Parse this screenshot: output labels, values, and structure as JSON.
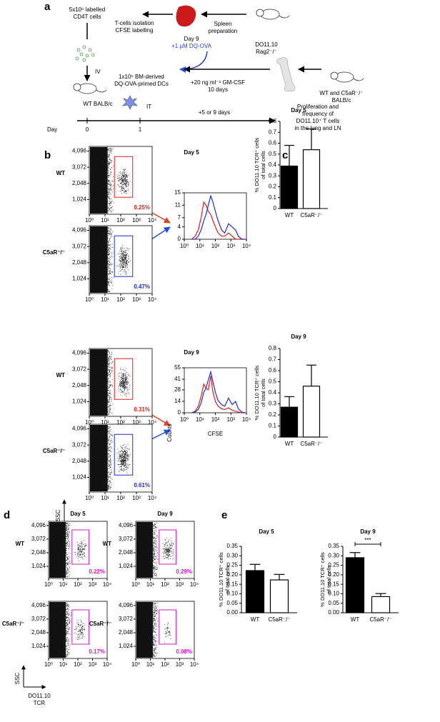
{
  "panels": {
    "a": "a",
    "b": "b",
    "c": "c",
    "d": "d",
    "e": "e"
  },
  "diagram": {
    "cells": [
      "5x10⁶ labelled",
      "CD4T cells"
    ],
    "isolation": [
      "T-cells isolation",
      "CFSE labelling"
    ],
    "spleen": [
      "Spleen",
      "preparation"
    ],
    "donor": [
      "DO11.10",
      "Rag2⁻/⁻"
    ],
    "dq": [
      "Day 9",
      "+1 µM DQ-OVA"
    ],
    "iv": "IV",
    "dcs": [
      "1x10⁶ BM-derived",
      "DQ-OVA-primed DCs"
    ],
    "gmcsf": [
      "+20 ng ml⁻¹ GM-CSF",
      "10 days"
    ],
    "bm_donor": [
      "WT and C5aR⁻/⁻",
      "BALB/c"
    ],
    "recipient": "WT BALB/c",
    "it": "IT",
    "wait": "+5 or 9 days",
    "readout": [
      "Proliferation and",
      "frequency of",
      "DO11.10⁺ T cells",
      "in the lung and LN"
    ],
    "timeline": {
      "label": "Day",
      "days": [
        "0",
        "1"
      ]
    }
  },
  "flow": {
    "b": {
      "days": [
        "Day 5",
        "Day 9"
      ],
      "rows": [
        "WT",
        "C5aR⁻/⁻"
      ],
      "gates": [
        [
          "0.25%",
          "0.47%"
        ],
        [
          "0.31%",
          "0.61%"
        ]
      ]
    },
    "d": {
      "days": [
        "Day 5",
        "Day 9"
      ],
      "rows": [
        "WT",
        "C5aR⁻/⁻"
      ],
      "gates": [
        [
          "0.22%",
          "0.17%"
        ],
        [
          "0.29%",
          "0.08%"
        ]
      ]
    },
    "yticks": [
      "1,024",
      "2,048",
      "3,072",
      "4,096"
    ],
    "xticks": [
      "10⁰",
      "10¹",
      "10²",
      "10³",
      "10⁴"
    ],
    "ylabel": "SSC",
    "xlabel": [
      "DO11.10",
      "TCR"
    ]
  },
  "chart_data": [
    {
      "type": "line",
      "x": [
        3,
        5,
        8,
        12,
        18,
        25,
        35,
        50,
        70,
        100,
        150,
        250,
        400,
        700,
        1200,
        2000,
        3000,
        5000,
        8000
      ],
      "xlog": true,
      "xlim": [
        1,
        10000
      ],
      "xticks": [
        {
          "value": 1,
          "label": "10⁰"
        },
        {
          "value": 10,
          "label": "10¹"
        },
        {
          "value": 100,
          "label": "10²"
        },
        {
          "value": 1000,
          "label": "10³"
        },
        {
          "value": 10000,
          "label": "10⁴"
        }
      ],
      "ylim": [
        0,
        15
      ],
      "yticks": [
        0,
        4,
        7,
        11,
        15
      ],
      "series": [
        {
          "color": "#e0201b",
          "values": [
            0,
            1,
            3,
            7,
            12,
            11,
            9,
            8,
            6,
            4,
            2,
            1,
            1,
            2,
            1,
            0,
            0,
            0,
            0
          ]
        },
        {
          "color": "#1f2fcf",
          "values": [
            0,
            0,
            1,
            3,
            6,
            8,
            11,
            14,
            12,
            9,
            6,
            3,
            2,
            5,
            4,
            3,
            1,
            0,
            0
          ]
        }
      ]
    },
    {
      "type": "line",
      "x": [
        3,
        5,
        8,
        12,
        18,
        25,
        35,
        50,
        70,
        100,
        150,
        250,
        400,
        700,
        1200,
        2000,
        3000,
        5000,
        8000
      ],
      "xlog": true,
      "xlim": [
        1,
        10000
      ],
      "xticks": [
        {
          "value": 1,
          "label": "10⁰"
        },
        {
          "value": 10,
          "label": "10¹"
        },
        {
          "value": 100,
          "label": "10²"
        },
        {
          "value": 1000,
          "label": "10³"
        },
        {
          "value": 10000,
          "label": "10⁴"
        }
      ],
      "ylim": [
        0,
        55
      ],
      "yticks": [
        0,
        14,
        28,
        41,
        55
      ],
      "xlabel": "CFSE",
      "ylabel": "Counts",
      "series": [
        {
          "color": "#e0201b",
          "values": [
            0,
            2,
            8,
            20,
            35,
            30,
            28,
            45,
            25,
            14,
            8,
            5,
            4,
            6,
            3,
            2,
            1,
            0,
            0
          ]
        },
        {
          "color": "#1f2fcf",
          "values": [
            0,
            1,
            4,
            12,
            25,
            30,
            40,
            50,
            38,
            25,
            15,
            10,
            8,
            18,
            10,
            14,
            5,
            1,
            0
          ]
        }
      ]
    },
    {
      "type": "bar",
      "title": "Day 5",
      "categories": [
        "WT",
        "C5aR⁻/⁻"
      ],
      "values": [
        0.39,
        0.54
      ],
      "errors": [
        0.19,
        0.19
      ],
      "colors": [
        "#000000",
        "#ffffff"
      ],
      "ylim": [
        0,
        0.8
      ],
      "yticks": [
        0,
        0.1,
        0.2,
        0.3,
        0.4,
        0.5,
        0.6,
        0.7,
        0.8
      ],
      "ylabel": [
        "% DO11.10 TCR⁺ cells",
        "of total cells"
      ]
    },
    {
      "type": "bar",
      "title": "Day 9",
      "categories": [
        "WT",
        "C5aR⁻/⁻"
      ],
      "values": [
        0.27,
        0.46
      ],
      "errors": [
        0.095,
        0.19
      ],
      "colors": [
        "#000000",
        "#ffffff"
      ],
      "ylim": [
        0,
        0.8
      ],
      "yticks": [
        0,
        0.1,
        0.2,
        0.3,
        0.4,
        0.5,
        0.6,
        0.7,
        0.8
      ],
      "ylabel": [
        "% DO11.10 TCR⁺ cells",
        "of total cells"
      ]
    },
    {
      "type": "bar",
      "title": "Day 5",
      "categories": [
        "WT",
        "C5aR⁻/⁻"
      ],
      "values": [
        0.222,
        0.173
      ],
      "errors": [
        0.033,
        0.029
      ],
      "colors": [
        "#000000",
        "#ffffff"
      ],
      "ylim": [
        0,
        0.35
      ],
      "yticks": [
        {
          "value": 0,
          "label": "0.00"
        },
        0.05,
        {
          "value": 0.1,
          "label": "0.10"
        },
        0.15,
        {
          "value": 0.2,
          "label": "0.20"
        },
        0.25,
        {
          "value": 0.3,
          "label": "0.30"
        },
        0.35
      ],
      "ylabel": [
        "% DO11.10 TCR⁺ cells",
        "of total cells"
      ]
    },
    {
      "type": "bar",
      "title": "Day 9",
      "categories": [
        "WT",
        "C5aR⁻/⁻"
      ],
      "values": [
        0.29,
        0.085
      ],
      "errors": [
        0.027,
        0.016
      ],
      "colors": [
        "#000000",
        "#ffffff"
      ],
      "ylim": [
        0,
        0.35
      ],
      "yticks": [
        {
          "value": 0,
          "label": "0.00"
        },
        0.05,
        {
          "value": 0.1,
          "label": "0.10"
        },
        0.15,
        {
          "value": 0.2,
          "label": "0.20"
        },
        0.25,
        {
          "value": 0.3,
          "label": "0.30"
        },
        0.35
      ],
      "ylabel": [
        "% DO11.10 TCR⁺ cells",
        "of total cells"
      ],
      "annotation": "***"
    }
  ]
}
